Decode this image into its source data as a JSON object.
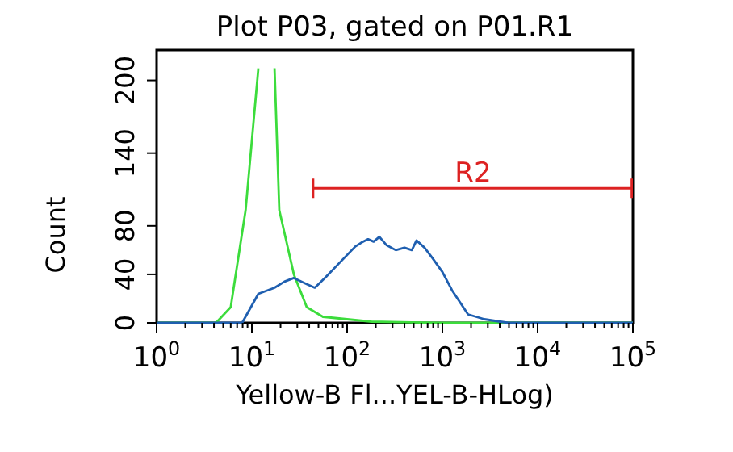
{
  "chart_data": {
    "type": "line",
    "title": "Plot P03, gated on P01.R1",
    "xlabel": "Yellow-B Fl...YEL-B-HLog)",
    "ylabel": "Count",
    "log": "x",
    "xlim": [
      1,
      100000
    ],
    "ylim": [
      0,
      225
    ],
    "xticks": [
      {
        "value": 1,
        "label": "10$^{0}$"
      },
      {
        "value": 10,
        "label": "10$^{1}$"
      },
      {
        "value": 100,
        "label": "10$^{2}$"
      },
      {
        "value": 1000,
        "label": "10$^{3}$"
      },
      {
        "value": 10000,
        "label": "10$^{4}$"
      },
      {
        "value": 100000,
        "label": "10$^{5}$"
      },
      {
        "value": 2,
        "label": null
      },
      {
        "value": 3,
        "label": null
      },
      {
        "value": 4,
        "label": null
      },
      {
        "value": 5,
        "label": null
      },
      {
        "value": 6,
        "label": null
      },
      {
        "value": 7,
        "label": null
      },
      {
        "value": 8,
        "label": null
      },
      {
        "value": 9,
        "label": null
      },
      {
        "value": 20,
        "label": null
      },
      {
        "value": 30,
        "label": null
      },
      {
        "value": 40,
        "label": null
      },
      {
        "value": 50,
        "label": null
      },
      {
        "value": 60,
        "label": null
      },
      {
        "value": 70,
        "label": null
      },
      {
        "value": 80,
        "label": null
      },
      {
        "value": 90,
        "label": null
      },
      {
        "value": 200,
        "label": null
      },
      {
        "value": 300,
        "label": null
      },
      {
        "value": 400,
        "label": null
      },
      {
        "value": 500,
        "label": null
      },
      {
        "value": 600,
        "label": null
      },
      {
        "value": 700,
        "label": null
      },
      {
        "value": 800,
        "label": null
      },
      {
        "value": 900,
        "label": null
      },
      {
        "value": 2000,
        "label": null
      },
      {
        "value": 3000,
        "label": null
      },
      {
        "value": 4000,
        "label": null
      },
      {
        "value": 5000,
        "label": null
      },
      {
        "value": 6000,
        "label": null
      },
      {
        "value": 7000,
        "label": null
      },
      {
        "value": 8000,
        "label": null
      },
      {
        "value": 9000,
        "label": null
      },
      {
        "value": 20000,
        "label": null
      },
      {
        "value": 30000,
        "label": null
      },
      {
        "value": 40000,
        "label": null
      },
      {
        "value": 50000,
        "label": null
      },
      {
        "value": 60000,
        "label": null
      },
      {
        "value": 70000,
        "label": null
      },
      {
        "value": 80000,
        "label": null
      },
      {
        "value": 90000,
        "label": null
      }
    ],
    "yticks": [
      0,
      40,
      80,
      140,
      200
    ],
    "grid": false,
    "marker": "none",
    "line_style": "solid",
    "series": [
      {
        "color": "#3cdc3c",
        "x": [
          1,
          4.2,
          6,
          8.6,
          11.7,
          13,
          15,
          17.3,
          19.4,
          27.6,
          37.7,
          55.7,
          180,
          1000,
          100000
        ],
        "values": [
          0,
          0,
          13,
          93,
          210,
          null,
          null,
          210,
          93,
          40,
          13,
          5,
          1,
          0,
          0
        ]
      },
      {
        "color": "#1f5fb0",
        "x": [
          1,
          7.9,
          11.7,
          17.3,
          22,
          27.6,
          37.7,
          45.8,
          60,
          82,
          100,
          122,
          140,
          166,
          190,
          218,
          260,
          324,
          400,
          478,
          535,
          650,
          794,
          1000,
          1260,
          1860,
          2760,
          4940,
          100000
        ],
        "values": [
          0,
          0,
          24,
          29,
          34,
          37,
          32,
          29,
          38,
          49,
          56,
          63,
          66,
          69,
          67,
          71,
          64,
          60,
          62,
          60,
          68,
          62,
          53,
          42,
          27,
          7,
          3,
          0,
          0
        ]
      },
      {
        "name": "R2",
        "type": "line",
        "color": "#dd2222",
        "x": [
          44,
          100000
        ],
        "values": [
          111,
          111
        ]
      }
    ]
  }
}
